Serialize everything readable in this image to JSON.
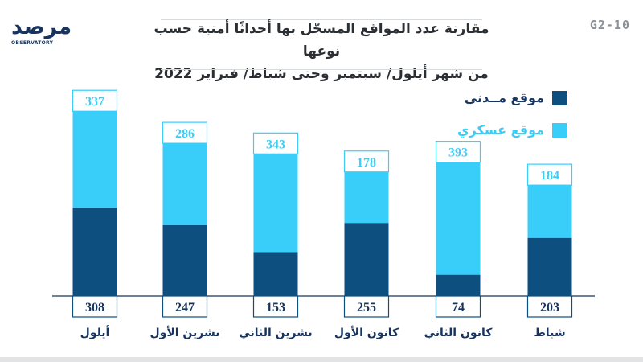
{
  "header": {
    "code": "G2-10",
    "title_line1": "مقارنة عدد المواقع المسجّل بها أحداثًا أمنية حسب نوعها",
    "title_line2": "من شهر أيلول/ سبتمبر وحتى شباط/ فبراير 2022"
  },
  "logo": {
    "text": "مرصد",
    "subtext": "OBSERVATORY"
  },
  "chart_data": {
    "type": "bar",
    "stacked": true,
    "categories": [
      "أيلول",
      "تشرين الأول",
      "تشرين الثاني",
      "كانون الأول",
      "كانون الثاني",
      "شباط"
    ],
    "series": [
      {
        "name": "موقع مــدني",
        "color": "#0d4f7f",
        "values": [
          308,
          247,
          153,
          255,
          74,
          203
        ]
      },
      {
        "name": "موقع عسكري",
        "color": "#39cdfa",
        "values": [
          337,
          286,
          343,
          178,
          393,
          184
        ]
      }
    ],
    "ylim": [
      0,
      700
    ],
    "legend": "top-right",
    "grid": false,
    "label_colors": {
      "civilian": "#16345f",
      "military": "#39cdfa"
    }
  }
}
